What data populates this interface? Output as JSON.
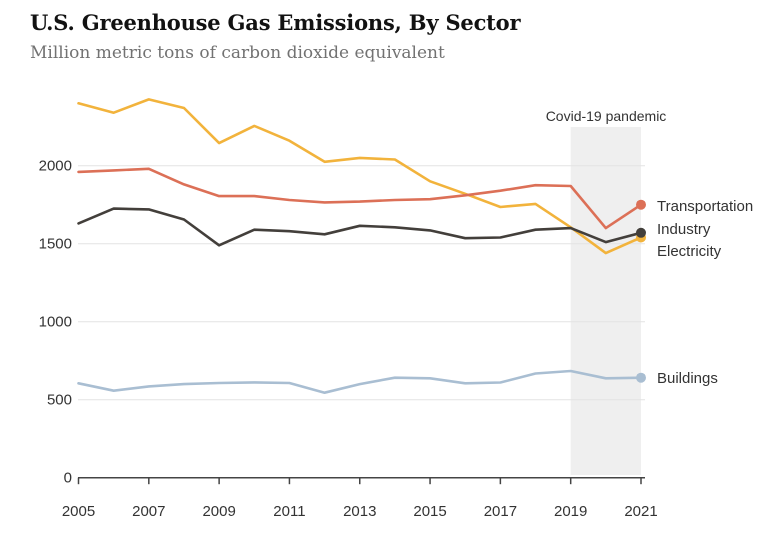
{
  "header": {
    "title": "U.S. Greenhouse Gas Emissions, By Sector",
    "subtitle": "Million metric tons of carbon dioxide equivalent"
  },
  "annotation": {
    "label": "Covid-19 pandemic",
    "band_years": [
      2019,
      2021
    ],
    "band_color": "#efefef"
  },
  "series_labels": {
    "transportation": "Transportation",
    "industry": "Industry",
    "electricity": "Electricity",
    "buildings": "Buildings"
  },
  "axis": {
    "tick_color": "#444444",
    "grid_color": "#e4e4e4",
    "label_color": "#333333"
  },
  "chart_data": {
    "type": "line",
    "title": "U.S. Greenhouse Gas Emissions, By Sector",
    "ylabel": "Million metric tons of carbon dioxide equivalent",
    "x": [
      2005,
      2006,
      2007,
      2008,
      2009,
      2010,
      2011,
      2012,
      2013,
      2014,
      2015,
      2016,
      2017,
      2018,
      2019,
      2020,
      2021
    ],
    "xticks": [
      2005,
      2007,
      2009,
      2011,
      2013,
      2015,
      2017,
      2019,
      2021
    ],
    "yticks": [
      0,
      500,
      1000,
      1500,
      2000
    ],
    "xlim": [
      2005,
      2021
    ],
    "ylim": [
      0,
      2450
    ],
    "grid": "horizontal",
    "end_markers": true,
    "legend_position": "right-of-line-end",
    "series": [
      {
        "name": "Electricity",
        "color": "#F2B33C",
        "values": [
          2400,
          2340,
          2425,
          2370,
          2145,
          2255,
          2160,
          2025,
          2050,
          2040,
          1900,
          1820,
          1735,
          1755,
          1605,
          1440,
          1540
        ]
      },
      {
        "name": "Transportation",
        "color": "#DC7057",
        "values": [
          1960,
          1970,
          1980,
          1880,
          1805,
          1805,
          1780,
          1765,
          1770,
          1780,
          1785,
          1810,
          1840,
          1875,
          1870,
          1600,
          1750
        ]
      },
      {
        "name": "Industry",
        "color": "#433F3B",
        "values": [
          1630,
          1725,
          1720,
          1655,
          1490,
          1590,
          1580,
          1560,
          1615,
          1605,
          1585,
          1535,
          1540,
          1590,
          1600,
          1510,
          1570
        ]
      },
      {
        "name": "Buildings",
        "color": "#A9BED2",
        "values": [
          605,
          558,
          585,
          600,
          607,
          611,
          607,
          545,
          600,
          641,
          637,
          605,
          610,
          668,
          684,
          637,
          641
        ]
      }
    ]
  }
}
